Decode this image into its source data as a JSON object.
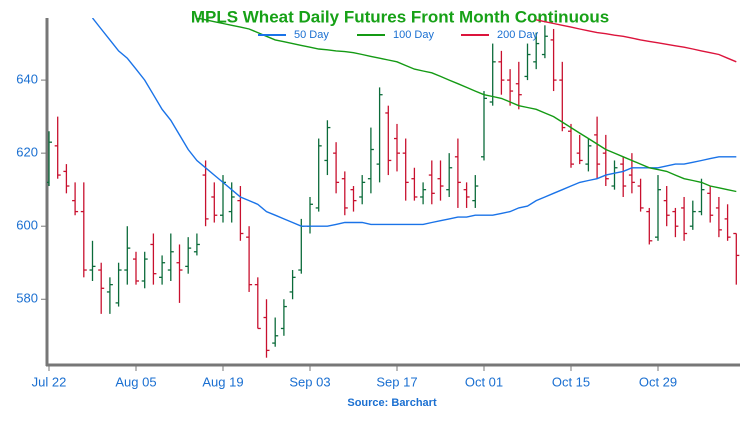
{
  "chart_data": {
    "type": "ohlc",
    "title": "MPLS Wheat Daily Futures Front Month Continuous",
    "source": "Source: Barchart",
    "categories": [
      "Jul 22",
      null,
      null,
      null,
      null,
      null,
      null,
      null,
      null,
      null,
      "Aug 05",
      null,
      null,
      null,
      null,
      null,
      null,
      null,
      null,
      null,
      "Aug 19",
      null,
      null,
      null,
      null,
      null,
      null,
      null,
      null,
      null,
      "Sep 03",
      null,
      null,
      null,
      null,
      null,
      null,
      null,
      null,
      null,
      "Sep 17",
      null,
      null,
      null,
      null,
      null,
      null,
      null,
      null,
      null,
      "Oct 01",
      null,
      null,
      null,
      null,
      null,
      null,
      null,
      null,
      null,
      "Oct 15",
      null,
      null,
      null,
      null,
      null,
      null,
      null,
      null,
      null,
      "Oct 29",
      null,
      null,
      null,
      null,
      null,
      null,
      null,
      null,
      null
    ],
    "open": [
      612,
      622,
      615,
      607,
      604,
      588,
      588,
      582,
      579,
      588,
      591,
      585,
      595,
      586,
      588,
      590,
      589,
      593,
      614,
      608,
      603,
      604,
      607,
      597,
      584,
      575,
      568,
      572,
      582,
      588,
      600,
      605,
      618,
      620,
      613,
      610,
      608,
      613,
      617,
      631,
      624,
      620,
      613,
      608,
      614,
      613,
      610,
      619,
      610,
      607,
      619,
      634,
      645,
      640,
      639,
      641,
      645,
      647,
      651,
      640,
      626,
      620,
      617,
      625,
      620,
      611,
      617,
      614,
      611,
      604,
      597,
      607,
      604,
      605,
      600,
      604,
      609,
      605,
      602,
      598
    ],
    "high": [
      626,
      630,
      617,
      612,
      612,
      596,
      590,
      586,
      590,
      600,
      593,
      593,
      598,
      592,
      598,
      595,
      597,
      598,
      618,
      612,
      614,
      612,
      611,
      600,
      586,
      580,
      575,
      580,
      588,
      602,
      608,
      624,
      629,
      623,
      615,
      611,
      614,
      627,
      638,
      633,
      628,
      624,
      616,
      612,
      618,
      618,
      620,
      624,
      612,
      614,
      637,
      650,
      648,
      643,
      645,
      650,
      653,
      655,
      654,
      645,
      628,
      625,
      624,
      630,
      625,
      618,
      619,
      620,
      613,
      605,
      614,
      611,
      605,
      608,
      607,
      613,
      611,
      608,
      606,
      598
    ],
    "low": [
      611,
      613,
      609,
      603,
      586,
      585,
      576,
      576,
      578,
      584,
      584,
      583,
      584,
      584,
      585,
      579,
      587,
      592,
      600,
      601,
      601,
      601,
      596,
      582,
      572,
      564,
      567,
      570,
      580,
      587,
      598,
      604,
      614,
      609,
      603,
      604,
      606,
      609,
      612,
      614,
      615,
      607,
      607,
      606,
      606,
      607,
      608,
      605,
      605,
      605,
      618,
      633,
      636,
      633,
      632,
      640,
      643,
      646,
      637,
      626,
      616,
      617,
      615,
      613,
      611,
      610,
      608,
      609,
      604,
      595,
      596,
      600,
      597,
      596,
      599,
      603,
      601,
      597,
      596,
      584
    ],
    "close": [
      623,
      614,
      611,
      604,
      588,
      589,
      583,
      584,
      588,
      594,
      585,
      591,
      587,
      590,
      593,
      588,
      594,
      595,
      602,
      603,
      612,
      608,
      598,
      584,
      572,
      566,
      570,
      578,
      586,
      600,
      606,
      622,
      627,
      612,
      605,
      607,
      612,
      621,
      636,
      618,
      620,
      612,
      608,
      610,
      609,
      611,
      616,
      612,
      608,
      611,
      635,
      645,
      640,
      637,
      636,
      647,
      650,
      652,
      640,
      627,
      617,
      618,
      622,
      617,
      613,
      616,
      611,
      612,
      605,
      596,
      610,
      603,
      600,
      598,
      604,
      610,
      603,
      599,
      597,
      592
    ],
    "up_color": "#0b6b3a",
    "down_color": "#c8102e",
    "lines": [
      {
        "name": "50 Day",
        "color": "#1a73e8",
        "values": [
          null,
          null,
          null,
          null,
          null,
          657,
          654,
          651,
          648,
          646,
          643,
          640,
          636,
          632,
          629,
          625,
          621,
          618,
          616,
          614,
          612,
          610,
          608,
          607,
          606,
          604,
          603,
          602,
          601,
          600,
          600,
          600,
          600,
          600.5,
          601,
          601,
          601,
          600.5,
          600.5,
          600.5,
          600.5,
          600.5,
          600.5,
          600.5,
          601,
          601.5,
          602,
          602.5,
          602.5,
          603,
          603,
          603,
          603.5,
          604,
          605,
          605.5,
          607,
          608,
          609,
          610,
          611,
          612,
          612.5,
          613,
          614,
          614.5,
          615,
          616,
          616,
          616,
          616,
          616.5,
          617,
          617,
          617.5,
          618,
          618.5,
          619,
          619,
          619
        ]
      },
      {
        "name": "100 Day",
        "color": "#149a14",
        "values": [
          null,
          null,
          null,
          null,
          null,
          null,
          null,
          null,
          null,
          null,
          null,
          null,
          null,
          null,
          null,
          null,
          null,
          657,
          656.5,
          656,
          655.5,
          655,
          654.5,
          654,
          653,
          652,
          651,
          650.5,
          650,
          649.5,
          649,
          648.5,
          648.3,
          648,
          647.8,
          647.5,
          647,
          646.5,
          646,
          645.5,
          645,
          644,
          643,
          642.5,
          642,
          641,
          640,
          639,
          638,
          637,
          636,
          635.5,
          635,
          634,
          633,
          632.5,
          632,
          631,
          630,
          628.5,
          627,
          625.5,
          624,
          622.5,
          621,
          620,
          619,
          618,
          617,
          616,
          615.5,
          615,
          614,
          613,
          612.5,
          612,
          611,
          610.5,
          610,
          609.5
        ]
      },
      {
        "name": "200 Day",
        "color": "#dc143c",
        "values": [
          null,
          null,
          null,
          null,
          null,
          null,
          null,
          null,
          null,
          null,
          null,
          null,
          null,
          null,
          null,
          null,
          null,
          null,
          null,
          null,
          null,
          null,
          null,
          null,
          null,
          null,
          null,
          null,
          null,
          null,
          null,
          null,
          null,
          null,
          null,
          null,
          null,
          null,
          null,
          null,
          null,
          null,
          null,
          null,
          null,
          null,
          null,
          null,
          null,
          null,
          null,
          null,
          null,
          null,
          null,
          null,
          656.5,
          656,
          655.5,
          655,
          654.5,
          654,
          653.5,
          653,
          652.7,
          652.3,
          652,
          651.5,
          651,
          650.6,
          650.2,
          649.8,
          649.4,
          649,
          648.5,
          648,
          647.5,
          647,
          646,
          645
        ]
      }
    ],
    "ylim": [
      562,
      657
    ],
    "yticks": [
      580,
      600,
      620,
      640
    ]
  }
}
